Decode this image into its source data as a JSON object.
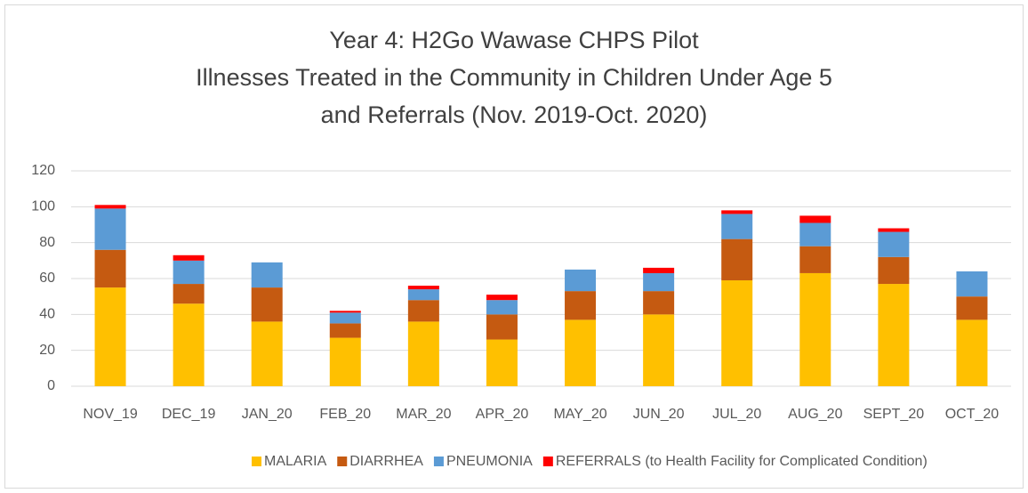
{
  "chart_data": {
    "type": "bar",
    "stacked": true,
    "title": [
      "Year 4: H2Go Wawase CHPS Pilot",
      "Illnesses Treated in the Community in Children Under Age 5",
      "and Referrals (Nov. 2019-Oct. 2020)"
    ],
    "categories": [
      "NOV_19",
      "DEC_19",
      "JAN_20",
      "FEB_20",
      "MAR_20",
      "APR_20",
      "MAY_20",
      "JUN_20",
      "JUL_20",
      "AUG_20",
      "SEPT_20",
      "OCT_20"
    ],
    "series": [
      {
        "name": "MALARIA",
        "color": "#ffc000",
        "values": [
          55,
          46,
          36,
          27,
          36,
          26,
          37,
          40,
          59,
          63,
          57,
          37
        ]
      },
      {
        "name": "DIARRHEA",
        "color": "#c55a11",
        "values": [
          21,
          11,
          19,
          8,
          12,
          14,
          16,
          13,
          23,
          15,
          15,
          13
        ]
      },
      {
        "name": "PNEUMONIA",
        "color": "#5b9bd5",
        "values": [
          23,
          13,
          14,
          6,
          6,
          8,
          12,
          10,
          14,
          13,
          14,
          14
        ]
      },
      {
        "name": "REFERRALS (to Health Facility for Complicated Condition)",
        "color": "#ff0000",
        "values": [
          2,
          3,
          0,
          1,
          2,
          3,
          0,
          3,
          2,
          4,
          2,
          0
        ]
      }
    ],
    "ylim": [
      0,
      120
    ],
    "yticks": [
      0,
      20,
      40,
      60,
      80,
      100,
      120
    ],
    "grid": true,
    "legend": "bottom"
  }
}
